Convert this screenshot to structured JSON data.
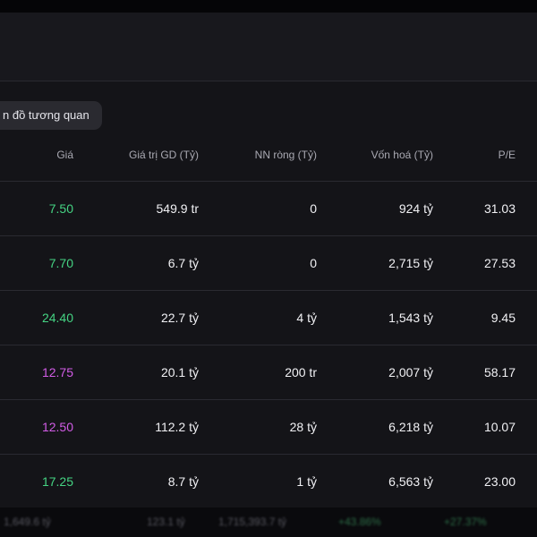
{
  "filter_chip": {
    "label": "n đồ tương quan"
  },
  "table": {
    "headers": {
      "price": "Giá",
      "value": "Giá trị GD (Tỷ)",
      "foreign_net": "NN ròng (Tỷ)",
      "market_cap": "Vốn hoá (Tỷ)",
      "pe": "P/E"
    },
    "rows": [
      {
        "price": "7.50",
        "price_color": "#45d483",
        "value": "549.9 tr",
        "foreign_net": "0",
        "market_cap": "924 tỷ",
        "pe": "31.03"
      },
      {
        "price": "7.70",
        "price_color": "#45d483",
        "value": "6.7 tỷ",
        "foreign_net": "0",
        "market_cap": "2,715 tỷ",
        "pe": "27.53"
      },
      {
        "price": "24.40",
        "price_color": "#45d483",
        "value": "22.7 tỷ",
        "foreign_net": "4 tỷ",
        "market_cap": "1,543 tỷ",
        "pe": "9.45"
      },
      {
        "price": "12.75",
        "price_color": "#d25ce6",
        "value": "20.1 tỷ",
        "foreign_net": "200 tr",
        "market_cap": "2,007 tỷ",
        "pe": "58.17"
      },
      {
        "price": "12.50",
        "price_color": "#d25ce6",
        "value": "112.2 tỷ",
        "foreign_net": "28 tỷ",
        "market_cap": "6,218 tỷ",
        "pe": "10.07"
      },
      {
        "price": "17.25",
        "price_color": "#45d483",
        "value": "8.7 tỷ",
        "foreign_net": "1 tỷ",
        "market_cap": "6,563 tỷ",
        "pe": "23.00"
      }
    ]
  },
  "footer": {
    "item1": "1,649.6 tỷ",
    "item2": "123.1 tỷ",
    "item3": "1,715,393.7 tỷ",
    "item4": "+43.86%",
    "item5": "+27.37%"
  },
  "colors": {
    "up_green": "#45d483",
    "ceiling_purple": "#d25ce6",
    "background": "#141418"
  }
}
